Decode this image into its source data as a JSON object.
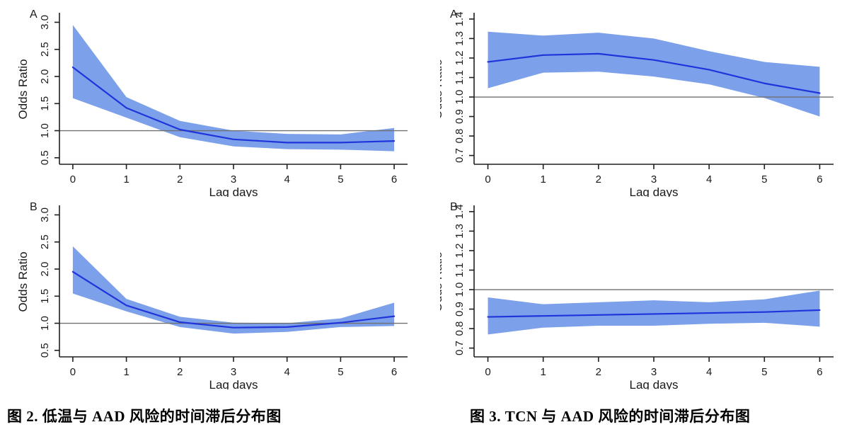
{
  "page_background": "#ffffff",
  "colors": {
    "band": "#7CA0E9",
    "line": "#2134DB",
    "reference_line": "#707070",
    "axis": "#1f1f1f",
    "text": "#1a1a1a"
  },
  "figures": [
    {
      "caption": "图 2. 低温与 AAD 风险的时间滞后分布图",
      "panel_charts": [
        0,
        1
      ]
    },
    {
      "caption": "图 3. TCN 与 AAD 风险的时间滞后分布图",
      "panel_charts": [
        2,
        3
      ]
    }
  ],
  "chart_data": [
    {
      "figure": "图 2",
      "panel": "A",
      "type": "line",
      "title": "",
      "xlabel": "Lag days",
      "ylabel": "Odds Ratio",
      "x": [
        0,
        1,
        2,
        3,
        4,
        5,
        6
      ],
      "series": [
        {
          "name": "odds_ratio",
          "values": [
            2.17,
            1.42,
            1.02,
            0.84,
            0.78,
            0.78,
            0.81
          ]
        },
        {
          "name": "ci_upper",
          "values": [
            2.95,
            1.62,
            1.18,
            1.0,
            0.94,
            0.93,
            1.05
          ]
        },
        {
          "name": "ci_lower",
          "values": [
            1.6,
            1.24,
            0.88,
            0.71,
            0.66,
            0.65,
            0.62
          ]
        }
      ],
      "reference_line": 1.0,
      "xlim": [
        -0.25,
        6.25
      ],
      "ylim": [
        0.38,
        3.15
      ],
      "xticks": [
        0,
        1,
        2,
        3,
        4,
        5,
        6
      ],
      "xtick_labels": [
        "0",
        "1",
        "2",
        "3",
        "4",
        "5",
        "6"
      ],
      "ytick_values": [
        0.5,
        1.0,
        1.5,
        2.0,
        2.5,
        3.0
      ],
      "ytick_labels": [
        "0.5",
        "1.0",
        "1.5",
        "2.0",
        "2.5",
        "3.0"
      ],
      "grid": false,
      "legend": "none"
    },
    {
      "figure": "图 2",
      "panel": "B",
      "type": "line",
      "title": "",
      "xlabel": "Lag days",
      "ylabel": "Odds Ratio",
      "x": [
        0,
        1,
        2,
        3,
        4,
        5,
        6
      ],
      "series": [
        {
          "name": "odds_ratio",
          "values": [
            1.95,
            1.33,
            1.02,
            0.92,
            0.93,
            1.01,
            1.13
          ]
        },
        {
          "name": "ci_upper",
          "values": [
            2.42,
            1.45,
            1.12,
            1.01,
            1.0,
            1.09,
            1.38
          ]
        },
        {
          "name": "ci_lower",
          "values": [
            1.55,
            1.22,
            0.93,
            0.81,
            0.84,
            0.93,
            0.95
          ]
        }
      ],
      "reference_line": 1.0,
      "xlim": [
        -0.25,
        6.25
      ],
      "ylim": [
        0.38,
        3.15
      ],
      "xticks": [
        0,
        1,
        2,
        3,
        4,
        5,
        6
      ],
      "xtick_labels": [
        "0",
        "1",
        "2",
        "3",
        "4",
        "5",
        "6"
      ],
      "ytick_values": [
        0.5,
        1.0,
        1.5,
        2.0,
        2.5,
        3.0
      ],
      "ytick_labels": [
        "0.5",
        "1.0",
        "1.5",
        "2.0",
        "2.5",
        "3.0"
      ],
      "grid": false,
      "legend": "none"
    },
    {
      "figure": "图 3",
      "panel": "A",
      "type": "line",
      "title": "",
      "xlabel": "Lag days",
      "ylabel": "Odds Ratio",
      "x": [
        0,
        1,
        2,
        3,
        4,
        5,
        6
      ],
      "series": [
        {
          "name": "odds_ratio",
          "values": [
            1.18,
            1.215,
            1.222,
            1.19,
            1.14,
            1.07,
            1.02
          ]
        },
        {
          "name": "ci_upper",
          "values": [
            1.335,
            1.315,
            1.33,
            1.3,
            1.235,
            1.18,
            1.155
          ]
        },
        {
          "name": "ci_lower",
          "values": [
            1.045,
            1.125,
            1.13,
            1.105,
            1.065,
            0.995,
            0.9
          ]
        }
      ],
      "reference_line": 1.0,
      "xlim": [
        -0.25,
        6.25
      ],
      "ylim": [
        0.655,
        1.425
      ],
      "xticks": [
        0,
        1,
        2,
        3,
        4,
        5,
        6
      ],
      "xtick_labels": [
        "0",
        "1",
        "2",
        "3",
        "4",
        "5",
        "6"
      ],
      "ytick_values": [
        0.7,
        0.8,
        0.9,
        1.0,
        1.1,
        1.2,
        1.3,
        1.4
      ],
      "ytick_labels": [
        "0.7",
        "0.8",
        "0.9",
        "1.0",
        "1.1",
        "1.2",
        "1.3",
        "1.4"
      ],
      "grid": false,
      "legend": "none"
    },
    {
      "figure": "图 3",
      "panel": "B",
      "type": "line",
      "title": "",
      "xlabel": "Lag days",
      "ylabel": "Odds Ratio",
      "x": [
        0,
        1,
        2,
        3,
        4,
        5,
        6
      ],
      "series": [
        {
          "name": "odds_ratio",
          "values": [
            0.86,
            0.865,
            0.87,
            0.875,
            0.88,
            0.885,
            0.895
          ]
        },
        {
          "name": "ci_upper",
          "values": [
            0.96,
            0.925,
            0.935,
            0.945,
            0.935,
            0.95,
            0.995
          ]
        },
        {
          "name": "ci_lower",
          "values": [
            0.77,
            0.805,
            0.815,
            0.815,
            0.825,
            0.83,
            0.81
          ]
        }
      ],
      "reference_line": 1.0,
      "xlim": [
        -0.25,
        6.25
      ],
      "ylim": [
        0.655,
        1.425
      ],
      "xticks": [
        0,
        1,
        2,
        3,
        4,
        5,
        6
      ],
      "xtick_labels": [
        "0",
        "1",
        "2",
        "3",
        "4",
        "5",
        "6"
      ],
      "ytick_values": [
        0.7,
        0.8,
        0.9,
        1.0,
        1.1,
        1.2,
        1.3,
        1.4
      ],
      "ytick_labels": [
        "0.7",
        "0.8",
        "0.9",
        "1.0",
        "1.1",
        "1.2",
        "1.3",
        "1.4"
      ],
      "grid": false,
      "legend": "none"
    }
  ]
}
